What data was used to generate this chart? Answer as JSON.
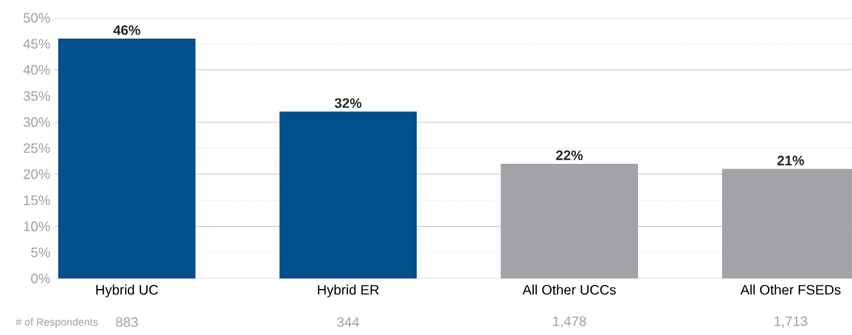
{
  "chart_data": {
    "type": "bar",
    "categories": [
      "Hybrid UC",
      "Hybrid ER",
      "All Other UCCs",
      "All Other FSEDs"
    ],
    "values": [
      46,
      32,
      22,
      21
    ],
    "colors": [
      "#00508c",
      "#00508c",
      "#a2a3a7",
      "#a2a3a7"
    ],
    "value_labels": [
      "46%",
      "32%",
      "22%",
      "21%"
    ],
    "ylim": [
      0,
      50
    ],
    "yticks": [
      {
        "value": 0,
        "label": "0%"
      },
      {
        "value": 5,
        "label": "5%"
      },
      {
        "value": 10,
        "label": "10%"
      },
      {
        "value": 15,
        "label": "15%"
      },
      {
        "value": 20,
        "label": "20%"
      },
      {
        "value": 25,
        "label": "25%"
      },
      {
        "value": 30,
        "label": "30%"
      },
      {
        "value": 35,
        "label": "35%"
      },
      {
        "value": 40,
        "label": "40%"
      },
      {
        "value": 45,
        "label": "45%"
      },
      {
        "value": 50,
        "label": "50%"
      }
    ],
    "grid": true,
    "annotations": [
      "# of Respondents",
      "883",
      "344",
      "1,478",
      "1,713"
    ]
  }
}
